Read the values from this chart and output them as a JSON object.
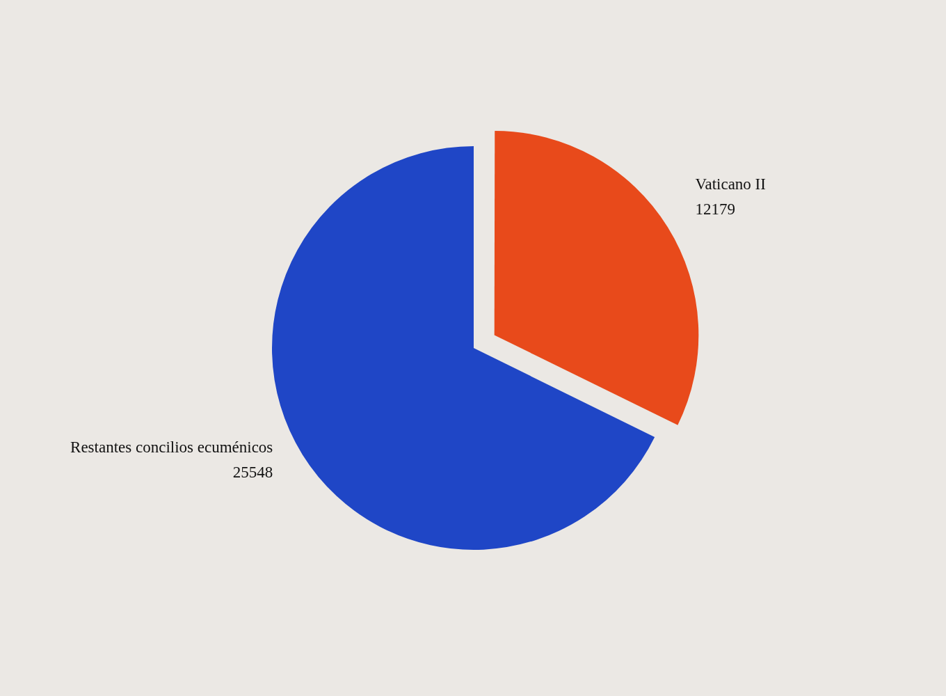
{
  "chart_data": {
    "type": "pie",
    "categories": [
      "Vaticano II",
      "Restantes concilios ecuménicos"
    ],
    "values": [
      12179,
      25548
    ],
    "colors": [
      "#e84a1b",
      "#1f46c6"
    ],
    "data_labels": true
  }
}
